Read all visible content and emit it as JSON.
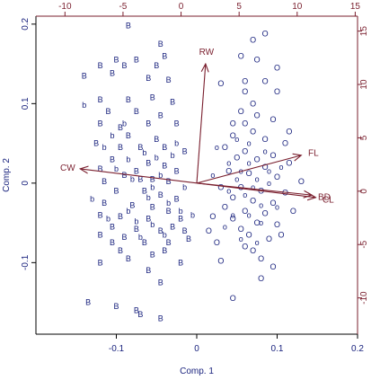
{
  "chart_data": {
    "type": "scatter",
    "subtype": "biplot",
    "xlabel": "Comp. 1",
    "ylabel": "Comp. 2",
    "xlim": [
      -0.2,
      0.2
    ],
    "ylim": [
      -0.19,
      0.21
    ],
    "xticks": [
      -0.1,
      0.0,
      0.1,
      0.2
    ],
    "yticks": [
      -0.1,
      0.0,
      0.1,
      0.2
    ],
    "top_axis": {
      "lim": [
        -12.5,
        15.2
      ],
      "ticks": [
        -10,
        -5,
        0,
        5,
        10,
        15
      ]
    },
    "right_axis": {
      "lim": [
        -13.4,
        16.4
      ],
      "ticks": [
        -10,
        -5,
        0,
        5,
        10,
        15
      ]
    },
    "colors": {
      "points": "#1a237e",
      "loadings": "#7a1f2e",
      "axes": "#000000"
    },
    "series": [
      {
        "name": "B",
        "points": [
          [
            -0.085,
            0.198
          ],
          [
            -0.045,
            0.175
          ],
          [
            -0.1,
            0.155
          ],
          [
            -0.04,
            0.16
          ],
          [
            -0.075,
            0.155
          ],
          [
            -0.12,
            0.148
          ],
          [
            -0.09,
            0.148
          ],
          [
            -0.05,
            0.148
          ],
          [
            -0.105,
            0.138
          ],
          [
            -0.14,
            0.135
          ],
          [
            -0.06,
            0.132
          ],
          [
            -0.035,
            0.13
          ],
          [
            -0.12,
            0.105
          ],
          [
            -0.085,
            0.105
          ],
          [
            -0.055,
            0.108
          ],
          [
            -0.03,
            0.102
          ],
          [
            -0.11,
            0.09
          ],
          [
            -0.075,
            0.09
          ],
          [
            -0.045,
            0.085
          ],
          [
            -0.12,
            0.075
          ],
          [
            -0.095,
            0.07
          ],
          [
            -0.06,
            0.075
          ],
          [
            -0.025,
            0.075
          ],
          [
            -0.085,
            0.06
          ],
          [
            -0.05,
            0.055
          ],
          [
            -0.125,
            0.05
          ],
          [
            -0.095,
            0.045
          ],
          [
            -0.07,
            0.045
          ],
          [
            -0.04,
            0.045
          ],
          [
            -0.015,
            0.04
          ],
          [
            -0.105,
            0.03
          ],
          [
            -0.06,
            0.025
          ],
          [
            -0.04,
            0.022
          ],
          [
            -0.12,
            0.018
          ],
          [
            -0.075,
            0.015
          ],
          [
            -0.025,
            0.015
          ],
          [
            -0.09,
            0.01
          ],
          [
            -0.055,
            0.005
          ],
          [
            -0.115,
            0.002
          ],
          [
            -0.035,
            0.002
          ],
          [
            -0.1,
            -0.01
          ],
          [
            -0.065,
            -0.01
          ],
          [
            -0.045,
            -0.015
          ],
          [
            -0.025,
            -0.02
          ],
          [
            -0.115,
            -0.025
          ],
          [
            -0.08,
            -0.028
          ],
          [
            -0.055,
            -0.03
          ],
          [
            -0.035,
            -0.035
          ],
          [
            -0.12,
            -0.04
          ],
          [
            -0.095,
            -0.042
          ],
          [
            -0.06,
            -0.045
          ],
          [
            -0.02,
            -0.045
          ],
          [
            -0.105,
            -0.055
          ],
          [
            -0.075,
            -0.058
          ],
          [
            -0.045,
            -0.06
          ],
          [
            -0.015,
            -0.06
          ],
          [
            -0.12,
            -0.065
          ],
          [
            -0.09,
            -0.068
          ],
          [
            -0.065,
            -0.075
          ],
          [
            -0.035,
            -0.075
          ],
          [
            -0.055,
            -0.09
          ],
          [
            -0.085,
            -0.095
          ],
          [
            -0.06,
            -0.11
          ],
          [
            -0.045,
            -0.125
          ],
          [
            -0.1,
            -0.155
          ],
          [
            -0.075,
            -0.16
          ],
          [
            -0.07,
            -0.165
          ],
          [
            -0.045,
            -0.17
          ],
          [
            -0.135,
            -0.15
          ],
          [
            -0.12,
            -0.1
          ],
          [
            -0.105,
            -0.075
          ],
          [
            -0.095,
            -0.085
          ],
          [
            -0.03,
            -0.055
          ],
          [
            -0.01,
            -0.07
          ],
          [
            -0.07,
            0.005
          ],
          [
            -0.04,
            -0.085
          ],
          [
            -0.02,
            -0.1
          ]
        ]
      },
      {
        "name": "b",
        "points": [
          [
            -0.14,
            0.098
          ],
          [
            -0.105,
            0.06
          ],
          [
            -0.115,
            0.045
          ],
          [
            -0.085,
            0.03
          ],
          [
            -0.065,
            0.038
          ],
          [
            -0.05,
            0.032
          ],
          [
            -0.1,
            0.018
          ],
          [
            -0.08,
            0.005
          ],
          [
            -0.055,
            -0.005
          ],
          [
            -0.035,
            -0.025
          ],
          [
            -0.015,
            -0.005
          ],
          [
            -0.06,
            -0.018
          ],
          [
            -0.085,
            -0.035
          ],
          [
            -0.11,
            -0.045
          ],
          [
            -0.075,
            -0.048
          ],
          [
            -0.03,
            0.035
          ],
          [
            -0.045,
            0.01
          ],
          [
            -0.02,
            -0.035
          ],
          [
            -0.07,
            -0.068
          ],
          [
            -0.13,
            -0.02
          ],
          [
            -0.09,
            0.075
          ],
          [
            -0.005,
            -0.04
          ],
          [
            -0.055,
            -0.052
          ],
          [
            -0.04,
            -0.065
          ],
          [
            -0.025,
            0.05
          ]
        ]
      },
      {
        "name": "O",
        "points": [
          [
            0.085,
            0.188
          ],
          [
            0.07,
            0.18
          ],
          [
            0.055,
            0.16
          ],
          [
            0.075,
            0.155
          ],
          [
            0.1,
            0.145
          ],
          [
            0.085,
            0.128
          ],
          [
            0.06,
            0.128
          ],
          [
            0.03,
            0.125
          ],
          [
            0.06,
            0.115
          ],
          [
            0.1,
            0.115
          ],
          [
            0.07,
            0.1
          ],
          [
            0.055,
            0.09
          ],
          [
            0.075,
            0.085
          ],
          [
            0.095,
            0.08
          ],
          [
            0.06,
            0.075
          ],
          [
            0.07,
            0.065
          ],
          [
            0.045,
            0.06
          ],
          [
            0.085,
            0.055
          ],
          [
            0.11,
            0.05
          ],
          [
            0.035,
            0.045
          ],
          [
            0.06,
            0.04
          ],
          [
            0.095,
            0.035
          ],
          [
            0.05,
            0.032
          ],
          [
            0.075,
            0.03
          ],
          [
            0.115,
            0.025
          ],
          [
            0.085,
            0.02
          ],
          [
            0.04,
            0.015
          ],
          [
            0.065,
            0.012
          ],
          [
            0.1,
            0.008
          ],
          [
            0.13,
            0.002
          ],
          [
            0.03,
            -0.005
          ],
          [
            0.055,
            -0.005
          ],
          [
            0.08,
            -0.01
          ],
          [
            0.11,
            -0.012
          ],
          [
            0.045,
            -0.018
          ],
          [
            0.07,
            -0.022
          ],
          [
            0.095,
            -0.025
          ],
          [
            0.035,
            -0.03
          ],
          [
            0.06,
            -0.035
          ],
          [
            0.085,
            -0.038
          ],
          [
            0.12,
            -0.035
          ],
          [
            0.045,
            -0.045
          ],
          [
            0.075,
            -0.05
          ],
          [
            0.1,
            -0.052
          ],
          [
            0.055,
            -0.058
          ],
          [
            0.065,
            -0.065
          ],
          [
            0.09,
            -0.07
          ],
          [
            0.07,
            -0.085
          ],
          [
            0.08,
            -0.095
          ],
          [
            0.03,
            -0.098
          ],
          [
            0.095,
            -0.105
          ],
          [
            0.045,
            -0.145
          ],
          [
            0.02,
            -0.042
          ],
          [
            0.015,
            -0.06
          ],
          [
            0.025,
            -0.075
          ],
          [
            0.06,
            -0.08
          ],
          [
            0.105,
            -0.065
          ],
          [
            0.115,
            0.065
          ],
          [
            0.045,
            0.075
          ],
          [
            0.08,
            -0.12
          ]
        ]
      },
      {
        "name": "o",
        "points": [
          [
            0.025,
            0.045
          ],
          [
            0.04,
            0.025
          ],
          [
            0.065,
            0.05
          ],
          [
            0.085,
            0.04
          ],
          [
            0.05,
            0.005
          ],
          [
            0.07,
            -0.005
          ],
          [
            0.09,
            0.0
          ],
          [
            0.04,
            -0.01
          ],
          [
            0.06,
            -0.015
          ],
          [
            0.08,
            -0.028
          ],
          [
            0.1,
            -0.03
          ],
          [
            0.035,
            -0.055
          ],
          [
            0.055,
            -0.07
          ],
          [
            0.075,
            -0.075
          ],
          [
            0.05,
            0.055
          ],
          [
            0.065,
            0.025
          ],
          [
            0.09,
            0.015
          ],
          [
            0.075,
            0.005
          ],
          [
            0.055,
            0.015
          ],
          [
            0.105,
            0.02
          ],
          [
            0.02,
            0.01
          ],
          [
            0.08,
            -0.05
          ],
          [
            0.065,
            -0.04
          ],
          [
            0.045,
            -0.04
          ]
        ]
      }
    ],
    "loadings": [
      {
        "name": "RW",
        "x": 0.011,
        "y": 0.15
      },
      {
        "name": "FL",
        "x": 0.13,
        "y": 0.035
      },
      {
        "name": "CW",
        "x": -0.145,
        "y": 0.018
      },
      {
        "name": "BD",
        "x": 0.143,
        "y": -0.015
      },
      {
        "name": "CL",
        "x": 0.148,
        "y": -0.018
      }
    ]
  }
}
